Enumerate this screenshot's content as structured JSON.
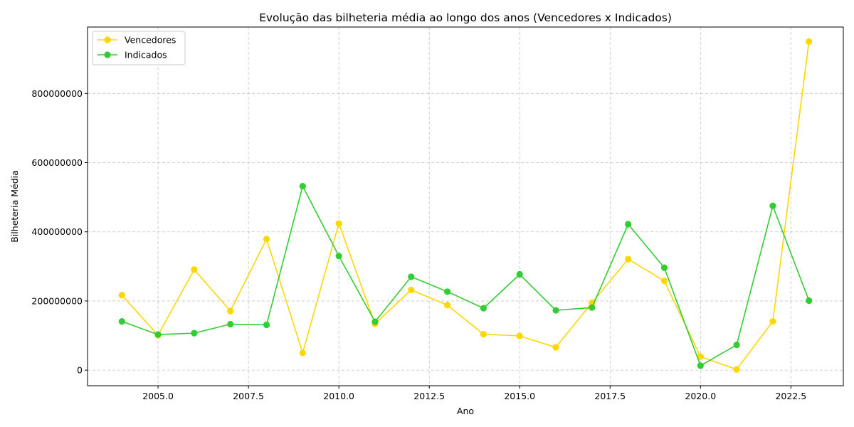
{
  "chart_data": {
    "type": "line",
    "title": "Evolução das bilheteria média ao longo dos anos (Vencedores x Indicados)",
    "xlabel": "Ano",
    "ylabel": "Bilheteria Média",
    "x": [
      2004,
      2005,
      2006,
      2007,
      2008,
      2009,
      2010,
      2011,
      2012,
      2013,
      2014,
      2015,
      2016,
      2017,
      2018,
      2019,
      2020,
      2021,
      2022,
      2023
    ],
    "xlim": [
      2003.05,
      2023.95
    ],
    "ylim": [
      -45000000,
      992000000
    ],
    "xticks": [
      2005.0,
      2007.5,
      2010.0,
      2012.5,
      2015.0,
      2017.5,
      2020.0,
      2022.5
    ],
    "xtick_labels": [
      "2005.0",
      "2007.5",
      "2010.0",
      "2012.5",
      "2015.0",
      "2017.5",
      "2020.0",
      "2022.5"
    ],
    "yticks": [
      0,
      200000000,
      400000000,
      600000000,
      800000000
    ],
    "ytick_labels": [
      "0",
      "200000000",
      "400000000",
      "600000000",
      "800000000"
    ],
    "grid": true,
    "legend_position": "top-left",
    "series": [
      {
        "name": "Vencedores",
        "color": "#FFD700",
        "values": [
          217000000,
          101000000,
          291000000,
          171000000,
          379000000,
          50000000,
          424000000,
          134000000,
          232000000,
          188000000,
          104000000,
          99000000,
          66000000,
          195000000,
          321000000,
          258000000,
          39000000,
          2000000,
          141000000,
          950000000
        ]
      },
      {
        "name": "Indicados",
        "color": "#32CD32",
        "values": [
          141000000,
          103000000,
          107000000,
          133000000,
          131000000,
          532000000,
          330000000,
          140000000,
          270000000,
          227000000,
          179000000,
          277000000,
          173000000,
          181000000,
          422000000,
          296000000,
          13000000,
          73000000,
          475000000,
          201000000
        ]
      }
    ]
  }
}
